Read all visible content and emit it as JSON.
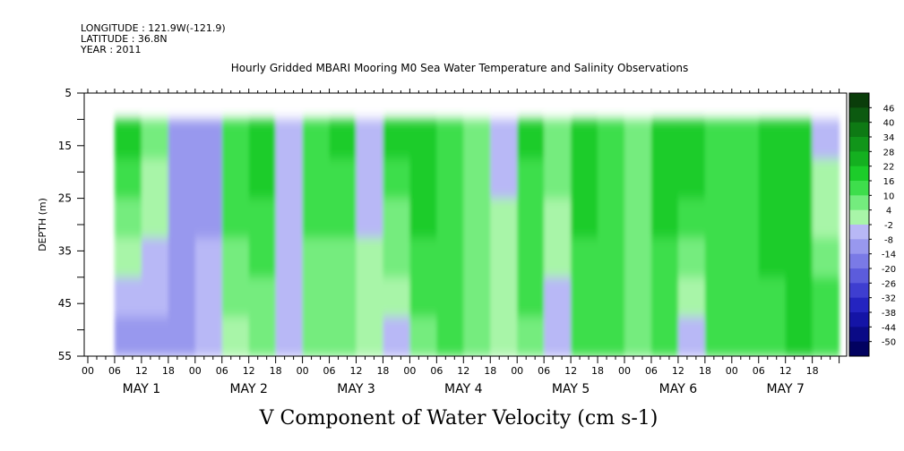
{
  "header": {
    "longitude": "LONGITUDE : 121.9W(-121.9)",
    "latitude": "LATITUDE : 36.8N",
    "year": "YEAR : 2011"
  },
  "chart_data": {
    "type": "heatmap",
    "title": "Hourly Gridded MBARI Mooring M0 Sea Water Temperature and Salinity Observations",
    "xlabel": "V Component of Water Velocity (cm s-1)",
    "ylabel": "DEPTH (m)",
    "y_ticks": [
      "5",
      "15",
      "25",
      "35",
      "45",
      "55"
    ],
    "ylim": [
      5,
      55
    ],
    "y_inverted": true,
    "x_hour_ticks": [
      "00",
      "06",
      "12",
      "18"
    ],
    "x_days": [
      "MAY 1",
      "MAY 2",
      "MAY 3",
      "MAY 4",
      "MAY 5",
      "MAY 6",
      "MAY 7"
    ],
    "data_depth_range": [
      10,
      55
    ],
    "data_start_hour": 6,
    "data_end_hour": 168,
    "colorbar_labels": [
      "46",
      "40",
      "34",
      "28",
      "22",
      "16",
      "10",
      "4",
      "-2",
      "-8",
      "-14",
      "-20",
      "-26",
      "-32",
      "-38",
      "-44",
      "-50"
    ],
    "colorbar_colors": [
      "#0a3d0a",
      "#0c5a10",
      "#0e7a14",
      "#11951a",
      "#14b020",
      "#1ccc2a",
      "#3ede4c",
      "#74ec7e",
      "#a8f5a8",
      "#b8b8f6",
      "#9898ee",
      "#7a7ae6",
      "#5c5cdc",
      "#3e3ed0",
      "#2424c0",
      "#1414a6",
      "#0a0a86",
      "#020260"
    ],
    "day_columns": [
      {
        "day": "MAY 1",
        "surface": [
          18,
          22,
          8,
          -10
        ],
        "bottom": [
          -12,
          -14,
          -10,
          -8
        ]
      },
      {
        "day": "MAY 2",
        "surface": [
          -10,
          16,
          20,
          -8
        ],
        "bottom": [
          -6,
          2,
          4,
          -4
        ]
      },
      {
        "day": "MAY 3",
        "surface": [
          14,
          18,
          -6,
          20
        ],
        "bottom": [
          6,
          4,
          2,
          -6
        ]
      },
      {
        "day": "MAY 4",
        "surface": [
          22,
          12,
          10,
          -4
        ],
        "bottom": [
          8,
          10,
          6,
          2
        ]
      },
      {
        "day": "MAY 5",
        "surface": [
          18,
          8,
          20,
          14
        ],
        "bottom": [
          8,
          -6,
          12,
          10
        ]
      },
      {
        "day": "MAY 6",
        "surface": [
          6,
          20,
          24,
          10
        ],
        "bottom": [
          10,
          12,
          -6,
          14
        ]
      },
      {
        "day": "MAY 7",
        "surface": [
          16,
          20,
          22,
          -8
        ],
        "bottom": [
          12,
          14,
          16,
          18
        ]
      }
    ]
  }
}
